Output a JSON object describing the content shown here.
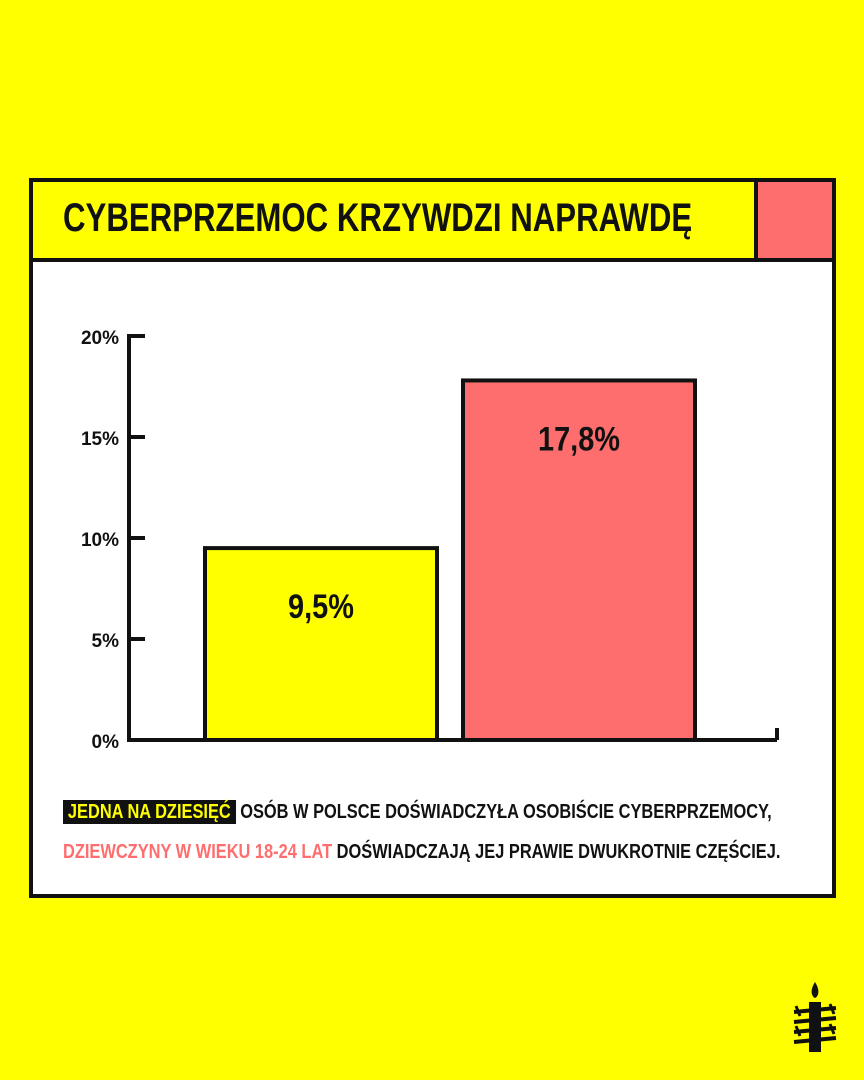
{
  "title": "CYBERPRZEMOC KRZYWDZI NAPRAWDĘ",
  "caption": {
    "line1_highlight": "JEDNA NA DZIESIĘĆ",
    "line1_rest": " OSÓB W POLSCE DOŚWIADCZYŁA OSOBIŚCIE CYBERPRZEMOCY,",
    "line2_highlight": "DZIEWCZYNY W WIEKU 18-24 LAT",
    "line2_rest": " DOŚWIADCZAJĄ JEJ PRAWIE DWUKROTNIE CZĘŚCIEJ."
  },
  "colors": {
    "background": "#ffff00",
    "accent_red": "#ff6e6e",
    "ink": "#111111"
  },
  "logo": "candle-barbed-wire-icon",
  "chart_data": {
    "type": "bar",
    "categories": [
      "",
      ""
    ],
    "values": [
      9.5,
      17.8
    ],
    "value_labels": [
      "9,5%",
      "17,8%"
    ],
    "bar_colors": [
      "#ffff00",
      "#ff6e6e"
    ],
    "ylim": [
      0,
      20
    ],
    "yticks": [
      0,
      5,
      10,
      15,
      20
    ],
    "ytick_labels": [
      "0%",
      "5%",
      "10%",
      "15%",
      "20%"
    ],
    "title": "",
    "xlabel": "",
    "ylabel": "",
    "grid": false
  }
}
